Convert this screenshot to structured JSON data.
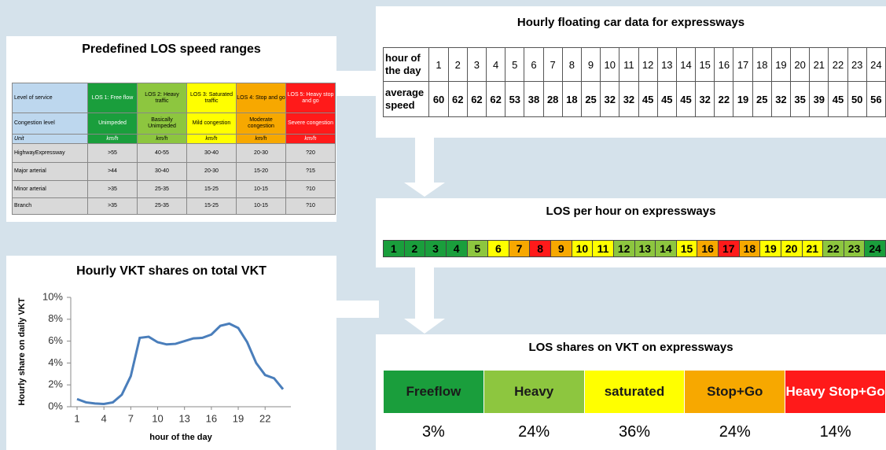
{
  "los_table": {
    "title": "Predefined LOS speed ranges",
    "header": [
      "Level of service",
      "LOS 1: Free flow",
      "LOS 2: Heavy traffic",
      "LOS 3: Saturated traffic",
      "LOS 4: Stop and go",
      "LOS 5: Heavy stop and go"
    ],
    "colors": [
      "#bdd7ee",
      "#1a9e3c",
      "#8dc63f",
      "#ffff00",
      "#f7a800",
      "#ff1a1a"
    ],
    "rows": [
      [
        "Congestion level",
        "Unimpeded",
        "Basically Unimpeded",
        "Mild congestion",
        "Moderate congestion",
        "Severe congestion"
      ],
      [
        "Unit",
        "km/h",
        "km/h",
        "km/h",
        "km/h",
        "km/h"
      ],
      [
        "HighwayExpressway",
        ">55",
        "40-55",
        "30-40",
        "20-30",
        "?20"
      ],
      [
        "Major arterial",
        ">44",
        "30-40",
        "20-30",
        "15-20",
        "?15"
      ],
      [
        "Minor arterial",
        ">35",
        "25-35",
        "15-25",
        "10-15",
        "?10"
      ],
      [
        "Branch",
        ">35",
        "25-35",
        "15-25",
        "10-15",
        "?10"
      ]
    ]
  },
  "speed_table": {
    "title": "Hourly floating car data for expressways",
    "rows": [
      [
        "hour of the day",
        "1",
        "2",
        "3",
        "4",
        "5",
        "6",
        "7",
        "8",
        "9",
        "10",
        "11",
        "12",
        "13",
        "14",
        "15",
        "16",
        "17",
        "18",
        "19",
        "20",
        "21",
        "22",
        "23",
        "24"
      ],
      [
        "average speed",
        "60",
        "62",
        "62",
        "62",
        "53",
        "38",
        "28",
        "18",
        "25",
        "32",
        "32",
        "45",
        "45",
        "45",
        "32",
        "22",
        "19",
        "25",
        "32",
        "35",
        "39",
        "45",
        "50",
        "56"
      ]
    ]
  },
  "los_hours": {
    "title": "LOS per hour on expressways",
    "cells": [
      {
        "label": "1",
        "color": "#1a9e3c"
      },
      {
        "label": "2",
        "color": "#1a9e3c"
      },
      {
        "label": "3",
        "color": "#1a9e3c"
      },
      {
        "label": "4",
        "color": "#1a9e3c"
      },
      {
        "label": "5",
        "color": "#8dc63f"
      },
      {
        "label": "6",
        "color": "#ffff00"
      },
      {
        "label": "7",
        "color": "#f7a800"
      },
      {
        "label": "8",
        "color": "#ff1a1a"
      },
      {
        "label": "9",
        "color": "#f7a800"
      },
      {
        "label": "10",
        "color": "#ffff00"
      },
      {
        "label": "11",
        "color": "#ffff00"
      },
      {
        "label": "12",
        "color": "#8dc63f"
      },
      {
        "label": "13",
        "color": "#8dc63f"
      },
      {
        "label": "14",
        "color": "#8dc63f"
      },
      {
        "label": "15",
        "color": "#ffff00"
      },
      {
        "label": "16",
        "color": "#f7a800"
      },
      {
        "label": "17",
        "color": "#ff1a1a"
      },
      {
        "label": "18",
        "color": "#f7a800"
      },
      {
        "label": "19",
        "color": "#ffff00"
      },
      {
        "label": "20",
        "color": "#ffff00"
      },
      {
        "label": "21",
        "color": "#ffff00"
      },
      {
        "label": "22",
        "color": "#8dc63f"
      },
      {
        "label": "23",
        "color": "#8dc63f"
      },
      {
        "label": "24",
        "color": "#1a9e3c"
      }
    ]
  },
  "los_shares": {
    "title": "LOS shares on VKT on expressways",
    "header": [
      "Freeflow",
      "Heavy",
      "saturated",
      "Stop+Go",
      "Heavy Stop+Go"
    ],
    "colors": [
      "#1a9e3c",
      "#8dc63f",
      "#ffff00",
      "#f7a800",
      "#ff1a1a"
    ],
    "values": [
      "3%",
      "24%",
      "36%",
      "24%",
      "14%"
    ]
  },
  "vkt_chart": {
    "type": "line",
    "title": "Hourly VKT shares on total VKT",
    "x_label": "hour of the day",
    "y_label": "Hourly share on daily VKT",
    "color": "#4a7ebb",
    "x": [
      1,
      2,
      3,
      4,
      5,
      6,
      7,
      8,
      9,
      10,
      11,
      12,
      13,
      14,
      15,
      16,
      17,
      18,
      19,
      20,
      21,
      22,
      23,
      24
    ],
    "values": [
      0.7,
      0.4,
      0.3,
      0.25,
      0.4,
      1.1,
      2.8,
      6.3,
      6.4,
      5.9,
      5.7,
      5.75,
      6.0,
      6.25,
      6.3,
      6.6,
      7.4,
      7.6,
      7.2,
      5.9,
      4.0,
      2.9,
      2.6,
      1.6
    ],
    "xlim": [
      1,
      24
    ],
    "xticks": [
      1,
      4,
      7,
      10,
      13,
      16,
      19,
      22
    ],
    "ylim": [
      0,
      10
    ],
    "yticks": [
      {
        "value": 0,
        "label": "0%"
      },
      {
        "value": 2,
        "label": "2%"
      },
      {
        "value": 4,
        "label": "4%"
      },
      {
        "value": 6,
        "label": "6%"
      },
      {
        "value": 8,
        "label": "8%"
      },
      {
        "value": 10,
        "label": "10%"
      }
    ]
  }
}
